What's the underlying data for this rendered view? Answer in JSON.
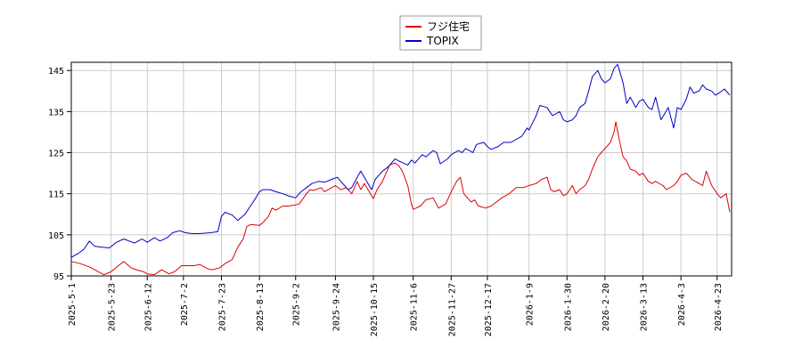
{
  "chart_data": {
    "type": "line",
    "title": "",
    "xlabel": "",
    "ylabel": "",
    "ylim": [
      95,
      147
    ],
    "yticks": [
      95,
      105,
      115,
      125,
      135,
      145
    ],
    "xlim": [
      "2025-05-01",
      "2026-05-01"
    ],
    "xticks": [
      "2025-5-1",
      "2025-5-23",
      "2025-6-12",
      "2025-7-2",
      "2025-7-23",
      "2025-8-13",
      "2025-9-2",
      "2025-9-24",
      "2025-10-15",
      "2025-11-6",
      "2025-11-27",
      "2025-12-17",
      "2026-1-9",
      "2026-1-30",
      "2026-2-20",
      "2026-3-13",
      "2026-4-3",
      "2026-4-23"
    ],
    "grid": true,
    "legend": "top-center",
    "series": [
      {
        "name": "フジ住宅",
        "color": "#dd0000",
        "points": [
          [
            "2025-05-01",
            98.5
          ],
          [
            "2025-05-06",
            98
          ],
          [
            "2025-05-12",
            97
          ],
          [
            "2025-05-16",
            96
          ],
          [
            "2025-05-19",
            95.3
          ],
          [
            "2025-05-23",
            96
          ],
          [
            "2025-05-27",
            97.5
          ],
          [
            "2025-05-30",
            98.5
          ],
          [
            "2025-06-03",
            97
          ],
          [
            "2025-06-06",
            96.5
          ],
          [
            "2025-06-10",
            96
          ],
          [
            "2025-06-12",
            95.5
          ],
          [
            "2025-06-16",
            95.3
          ],
          [
            "2025-06-20",
            96.5
          ],
          [
            "2025-06-24",
            95.5
          ],
          [
            "2025-06-27",
            96
          ],
          [
            "2025-07-01",
            97.5
          ],
          [
            "2025-07-03",
            97.5
          ],
          [
            "2025-07-08",
            97.5
          ],
          [
            "2025-07-11",
            97.8
          ],
          [
            "2025-07-15",
            96.8
          ],
          [
            "2025-07-18",
            96.5
          ],
          [
            "2025-07-22",
            97
          ],
          [
            "2025-07-25",
            98
          ],
          [
            "2025-07-29",
            99
          ],
          [
            "2025-08-01",
            102
          ],
          [
            "2025-08-04",
            104
          ],
          [
            "2025-08-06",
            107
          ],
          [
            "2025-08-08",
            107.5
          ],
          [
            "2025-08-13",
            107.3
          ],
          [
            "2025-08-15",
            108
          ],
          [
            "2025-08-18",
            109.5
          ],
          [
            "2025-08-20",
            111.5
          ],
          [
            "2025-08-22",
            111
          ],
          [
            "2025-08-26",
            112
          ],
          [
            "2025-08-29",
            112
          ],
          [
            "2025-09-02",
            112.3
          ],
          [
            "2025-09-04",
            112.5
          ],
          [
            "2025-09-08",
            115
          ],
          [
            "2025-09-10",
            116
          ],
          [
            "2025-09-12",
            115.8
          ],
          [
            "2025-09-16",
            116.5
          ],
          [
            "2025-09-18",
            115.5
          ],
          [
            "2025-09-22",
            116.5
          ],
          [
            "2025-09-24",
            117
          ],
          [
            "2025-09-27",
            116
          ],
          [
            "2025-09-30",
            116.5
          ],
          [
            "2025-10-03",
            115
          ],
          [
            "2025-10-06",
            118
          ],
          [
            "2025-10-08",
            116
          ],
          [
            "2025-10-10",
            117.5
          ],
          [
            "2025-10-15",
            113.8
          ],
          [
            "2025-10-17",
            116
          ],
          [
            "2025-10-20",
            118
          ],
          [
            "2025-10-22",
            120
          ],
          [
            "2025-10-24",
            122
          ],
          [
            "2025-10-27",
            122.5
          ],
          [
            "2025-10-29",
            121.8
          ],
          [
            "2025-10-31",
            120.5
          ],
          [
            "2025-11-03",
            117
          ],
          [
            "2025-11-05",
            112.5
          ],
          [
            "2025-11-06",
            111.2
          ],
          [
            "2025-11-10",
            112
          ],
          [
            "2025-11-13",
            113.5
          ],
          [
            "2025-11-17",
            114
          ],
          [
            "2025-11-20",
            111.5
          ],
          [
            "2025-11-24",
            112.5
          ],
          [
            "2025-11-27",
            115.5
          ],
          [
            "2025-11-30",
            118
          ],
          [
            "2025-12-02",
            119
          ],
          [
            "2025-12-04",
            115
          ],
          [
            "2025-12-08",
            113
          ],
          [
            "2025-12-10",
            113.5
          ],
          [
            "2025-12-12",
            112
          ],
          [
            "2025-12-16",
            111.5
          ],
          [
            "2025-12-19",
            112
          ],
          [
            "2025-12-22",
            113
          ],
          [
            "2025-12-25",
            114
          ],
          [
            "2025-12-29",
            115
          ],
          [
            "2026-01-02",
            116.5
          ],
          [
            "2026-01-06",
            116.5
          ],
          [
            "2026-01-09",
            117
          ],
          [
            "2026-01-13",
            117.5
          ],
          [
            "2026-01-16",
            118.5
          ],
          [
            "2026-01-19",
            119
          ],
          [
            "2026-01-21",
            116
          ],
          [
            "2026-01-23",
            115.5
          ],
          [
            "2026-01-26",
            116
          ],
          [
            "2026-01-28",
            114.5
          ],
          [
            "2026-01-30",
            115
          ],
          [
            "2026-02-02",
            117
          ],
          [
            "2026-02-04",
            115
          ],
          [
            "2026-02-06",
            116
          ],
          [
            "2026-02-09",
            117
          ],
          [
            "2026-02-11",
            118.5
          ],
          [
            "2026-02-13",
            121
          ],
          [
            "2026-02-16",
            124
          ],
          [
            "2026-02-18",
            125
          ],
          [
            "2026-02-20",
            126
          ],
          [
            "2026-02-23",
            127.5
          ],
          [
            "2026-02-25",
            130
          ],
          [
            "2026-02-26",
            132.5
          ],
          [
            "2026-02-28",
            128
          ],
          [
            "2026-03-02",
            124
          ],
          [
            "2026-03-04",
            123
          ],
          [
            "2026-03-06",
            121
          ],
          [
            "2026-03-09",
            120.5
          ],
          [
            "2026-03-11",
            119.5
          ],
          [
            "2026-03-13",
            120
          ],
          [
            "2026-03-16",
            118
          ],
          [
            "2026-03-18",
            117.5
          ],
          [
            "2026-03-20",
            118
          ],
          [
            "2026-03-24",
            117
          ],
          [
            "2026-03-26",
            116
          ],
          [
            "2026-03-30",
            117
          ],
          [
            "2026-04-01",
            118
          ],
          [
            "2026-04-03",
            119.5
          ],
          [
            "2026-04-06",
            120
          ],
          [
            "2026-04-09",
            118.5
          ],
          [
            "2026-04-13",
            117.5
          ],
          [
            "2026-04-15",
            117
          ],
          [
            "2026-04-17",
            120.5
          ],
          [
            "2026-04-20",
            117
          ],
          [
            "2026-04-23",
            115
          ],
          [
            "2026-04-25",
            114
          ],
          [
            "2026-04-28",
            115
          ],
          [
            "2026-04-30",
            110.5
          ]
        ]
      },
      {
        "name": "TOPIX",
        "color": "#0000cc",
        "points": [
          [
            "2025-05-01",
            99.5
          ],
          [
            "2025-05-05",
            100.5
          ],
          [
            "2025-05-08",
            101.5
          ],
          [
            "2025-05-11",
            103.5
          ],
          [
            "2025-05-14",
            102.2
          ],
          [
            "2025-05-18",
            102
          ],
          [
            "2025-05-22",
            101.8
          ],
          [
            "2025-05-26",
            103.2
          ],
          [
            "2025-05-30",
            104
          ],
          [
            "2025-06-02",
            103.5
          ],
          [
            "2025-06-05",
            103
          ],
          [
            "2025-06-09",
            104
          ],
          [
            "2025-06-12",
            103.2
          ],
          [
            "2025-06-16",
            104.3
          ],
          [
            "2025-06-19",
            103.5
          ],
          [
            "2025-06-23",
            104.3
          ],
          [
            "2025-06-26",
            105.5
          ],
          [
            "2025-06-30",
            106
          ],
          [
            "2025-07-03",
            105.5
          ],
          [
            "2025-07-07",
            105.3
          ],
          [
            "2025-07-10",
            105.3
          ],
          [
            "2025-07-14",
            105.4
          ],
          [
            "2025-07-17",
            105.5
          ],
          [
            "2025-07-21",
            105.8
          ],
          [
            "2025-07-23",
            109.5
          ],
          [
            "2025-07-25",
            110.5
          ],
          [
            "2025-07-29",
            109.8
          ],
          [
            "2025-08-01",
            108.5
          ],
          [
            "2025-08-05",
            110
          ],
          [
            "2025-08-08",
            112
          ],
          [
            "2025-08-11",
            114
          ],
          [
            "2025-08-13",
            115.5
          ],
          [
            "2025-08-15",
            116
          ],
          [
            "2025-08-19",
            116
          ],
          [
            "2025-08-22",
            115.5
          ],
          [
            "2025-08-26",
            115
          ],
          [
            "2025-08-29",
            114.5
          ],
          [
            "2025-09-02",
            114
          ],
          [
            "2025-09-05",
            115.5
          ],
          [
            "2025-09-08",
            116.5
          ],
          [
            "2025-09-11",
            117.5
          ],
          [
            "2025-09-15",
            118
          ],
          [
            "2025-09-18",
            117.8
          ],
          [
            "2025-09-22",
            118.5
          ],
          [
            "2025-09-25",
            119
          ],
          [
            "2025-09-29",
            117
          ],
          [
            "2025-10-01",
            116
          ],
          [
            "2025-10-03",
            116.5
          ],
          [
            "2025-10-06",
            119
          ],
          [
            "2025-10-08",
            120.5
          ],
          [
            "2025-10-10",
            119
          ],
          [
            "2025-10-14",
            116
          ],
          [
            "2025-10-16",
            118.5
          ],
          [
            "2025-10-20",
            120.5
          ],
          [
            "2025-10-23",
            121.5
          ],
          [
            "2025-10-27",
            123.5
          ],
          [
            "2025-10-29",
            123
          ],
          [
            "2025-11-03",
            122
          ],
          [
            "2025-11-05",
            123.2
          ],
          [
            "2025-11-07",
            122.5
          ],
          [
            "2025-11-11",
            124.5
          ],
          [
            "2025-11-13",
            124
          ],
          [
            "2025-11-17",
            125.5
          ],
          [
            "2025-11-19",
            125
          ],
          [
            "2025-11-21",
            122.3
          ],
          [
            "2025-11-25",
            123.5
          ],
          [
            "2025-11-27",
            124.5
          ],
          [
            "2025-12-01",
            125.5
          ],
          [
            "2025-12-03",
            125
          ],
          [
            "2025-12-05",
            126
          ],
          [
            "2025-12-09",
            125
          ],
          [
            "2025-12-11",
            127
          ],
          [
            "2025-12-15",
            127.5
          ],
          [
            "2025-12-17",
            126.5
          ],
          [
            "2025-12-19",
            125.8
          ],
          [
            "2025-12-23",
            126.5
          ],
          [
            "2025-12-26",
            127.5
          ],
          [
            "2025-12-30",
            127.5
          ],
          [
            "2026-01-05",
            129
          ],
          [
            "2026-01-08",
            131
          ],
          [
            "2026-01-09",
            130.5
          ],
          [
            "2026-01-13",
            134
          ],
          [
            "2026-01-15",
            136.5
          ],
          [
            "2026-01-19",
            136
          ],
          [
            "2026-01-22",
            134
          ],
          [
            "2026-01-26",
            135
          ],
          [
            "2026-01-28",
            133
          ],
          [
            "2026-01-30",
            132.5
          ],
          [
            "2026-02-02",
            133
          ],
          [
            "2026-02-04",
            134
          ],
          [
            "2026-02-06",
            136
          ],
          [
            "2026-02-09",
            137
          ],
          [
            "2026-02-11",
            140
          ],
          [
            "2026-02-13",
            143.5
          ],
          [
            "2026-02-16",
            145
          ],
          [
            "2026-02-18",
            143
          ],
          [
            "2026-02-20",
            142
          ],
          [
            "2026-02-23",
            143
          ],
          [
            "2026-02-25",
            145.5
          ],
          [
            "2026-02-27",
            146.5
          ],
          [
            "2026-03-02",
            142
          ],
          [
            "2026-03-04",
            137
          ],
          [
            "2026-03-06",
            138.5
          ],
          [
            "2026-03-09",
            136
          ],
          [
            "2026-03-11",
            137.5
          ],
          [
            "2026-03-13",
            138
          ],
          [
            "2026-03-16",
            136
          ],
          [
            "2026-03-18",
            135.5
          ],
          [
            "2026-03-20",
            138.5
          ],
          [
            "2026-03-23",
            133
          ],
          [
            "2026-03-25",
            134.5
          ],
          [
            "2026-03-27",
            136
          ],
          [
            "2026-03-30",
            131
          ],
          [
            "2026-04-01",
            136
          ],
          [
            "2026-04-03",
            135.5
          ],
          [
            "2026-04-06",
            138
          ],
          [
            "2026-04-08",
            141
          ],
          [
            "2026-04-10",
            139.5
          ],
          [
            "2026-04-13",
            140
          ],
          [
            "2026-04-15",
            141.5
          ],
          [
            "2026-04-17",
            140.5
          ],
          [
            "2026-04-20",
            140
          ],
          [
            "2026-04-22",
            139
          ],
          [
            "2026-04-24",
            139.5
          ],
          [
            "2026-04-27",
            140.5
          ],
          [
            "2026-04-30",
            139
          ]
        ]
      }
    ]
  }
}
